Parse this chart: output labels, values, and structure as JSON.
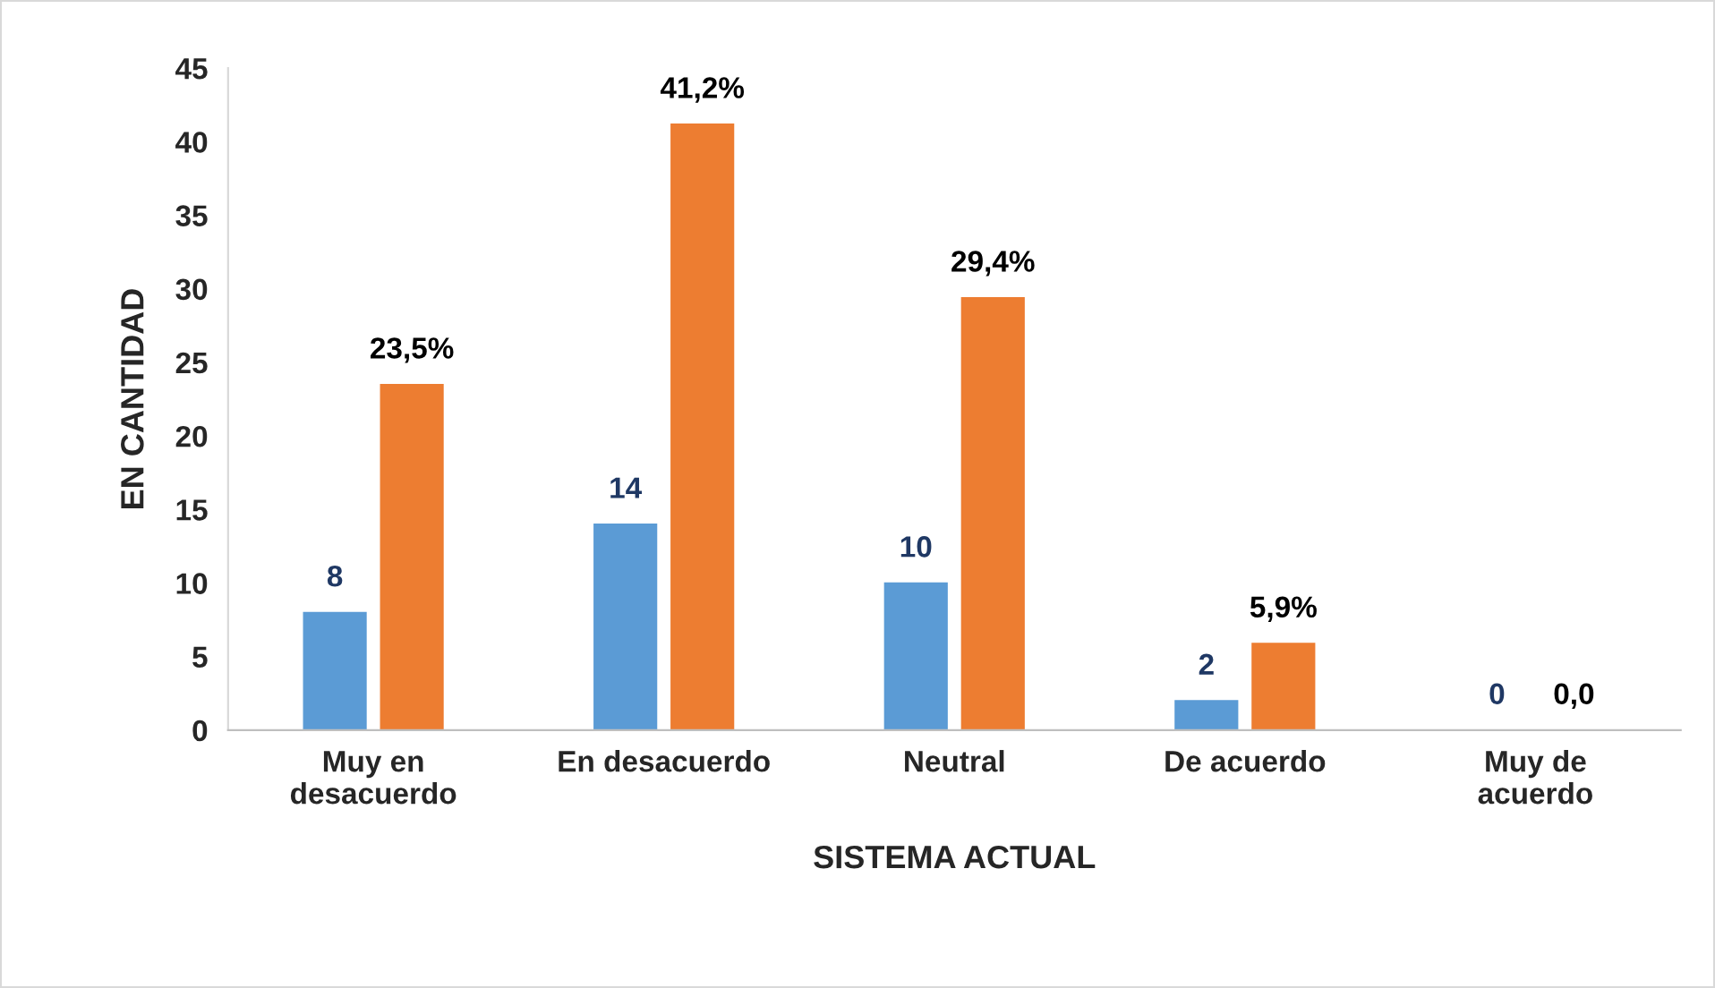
{
  "chart_data": {
    "type": "bar",
    "xlabel": "SISTEMA ACTUAL",
    "ylabel": "EN CANTIDAD",
    "categories": [
      "Muy en\ndesacuerdo",
      "En desacuerdo",
      "Neutral",
      "De acuerdo",
      "Muy de\nacuerdo"
    ],
    "series": [
      {
        "color": "#5b9bd5",
        "values": [
          8,
          14,
          10,
          2,
          0
        ],
        "value_labels": [
          "8",
          "14",
          "10",
          "2",
          "0"
        ]
      },
      {
        "color": "#ed7d31",
        "values": [
          23.5,
          41.2,
          29.4,
          5.9,
          0
        ],
        "value_labels": [
          "23,5%",
          "41,2%",
          "29,4%",
          "5,9%",
          "0,0"
        ]
      }
    ],
    "ylim": [
      0,
      45
    ],
    "yticks": [
      0,
      5,
      10,
      15,
      20,
      25,
      30,
      35,
      40,
      45
    ],
    "grid": false,
    "legend": false
  }
}
